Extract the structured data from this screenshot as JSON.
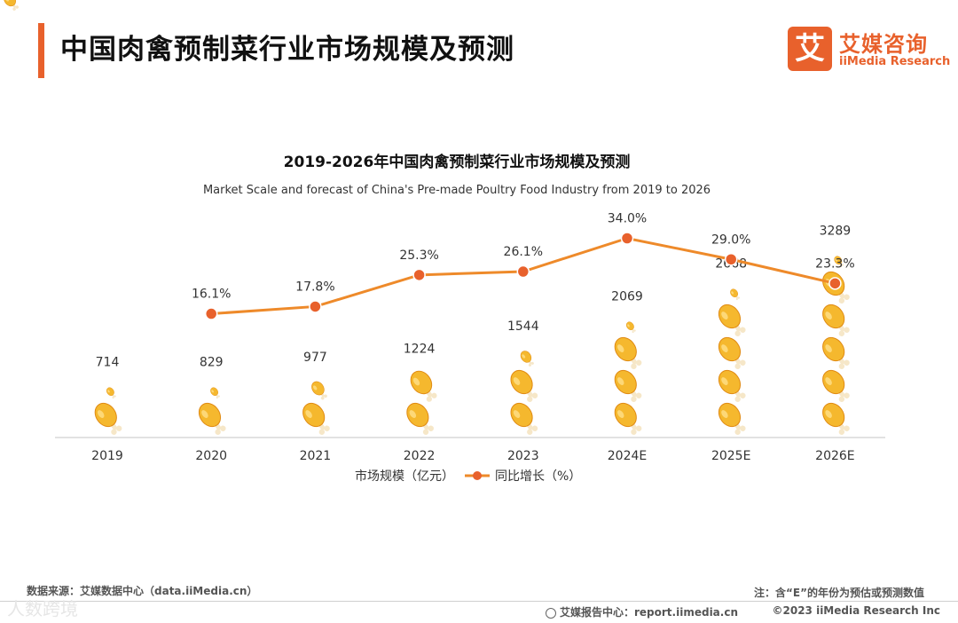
{
  "header": {
    "title": "中国肉禽预制菜行业市场规模及预测"
  },
  "brand": {
    "logo_glyph": "艾",
    "name_cn": "艾媒咨询",
    "name_en": "iiMedia Research"
  },
  "colors": {
    "accent": "#e8612c",
    "line": "#ee8a2a",
    "axis": "#d9d9d9",
    "drumstick": "#f5b82e",
    "drumstick_dark": "#e08a12",
    "bone": "#f6e7c8"
  },
  "chart_data": {
    "type": "bar+line",
    "title": "2019-2026年中国肉禽预制菜行业市场规模及预测",
    "subtitle": "Market Scale and forecast of China's Pre-made Poultry Food Industry from 2019 to 2026",
    "categories": [
      "2019",
      "2020",
      "2021",
      "2022",
      "2023",
      "2024E",
      "2025E",
      "2026E"
    ],
    "series": [
      {
        "name": "市场规模（亿元）",
        "type": "pictorial-bar",
        "values": [
          714,
          829,
          977,
          1224,
          1544,
          2069,
          2668,
          3289
        ],
        "labels": [
          "714",
          "829",
          "977",
          "1224",
          "1544",
          "2069",
          "2668",
          "3289"
        ]
      },
      {
        "name": "同比增长（%）",
        "type": "line",
        "values": [
          null,
          16.1,
          17.8,
          25.3,
          26.1,
          34.0,
          29.0,
          23.3
        ],
        "labels": [
          "",
          "16.1%",
          "17.8%",
          "25.3%",
          "26.1%",
          "34.0%",
          "29.0%",
          "23.3%"
        ]
      }
    ],
    "legend": "bottom-center",
    "bar_unit_per_icon": 620,
    "grid": false
  },
  "footer": {
    "source": "数据来源：艾媒数据中心（data.iiMedia.cn）",
    "note": "注：含“E”的年份为预估或预测数值",
    "report": "艾媒报告中心：report.iimedia.cn",
    "copyright": "©2023  iiMedia Research  Inc",
    "watermark": "人数跨境"
  }
}
